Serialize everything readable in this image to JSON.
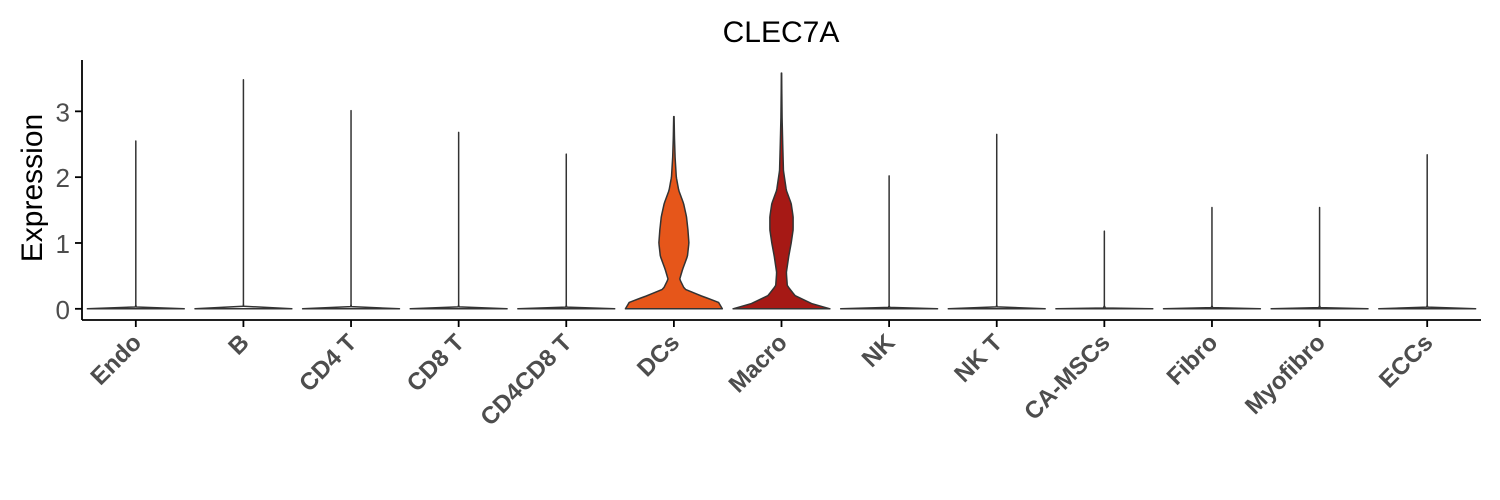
{
  "chart_data": {
    "type": "violin",
    "title": "CLEC7A",
    "xlabel": "",
    "ylabel": "Expression",
    "ylim": [
      -0.17,
      3.78
    ],
    "yticks": [
      0,
      1,
      2,
      3
    ],
    "grid": false,
    "legend": "none",
    "categories": [
      "Endo",
      "B",
      "CD4 T",
      "CD8 T",
      "CD4CD8 T",
      "DCs",
      "Macro",
      "NK",
      "NK T",
      "CA-MSCs",
      "Fibro",
      "Myofibro",
      "ECCs"
    ],
    "max_values": [
      2.55,
      3.48,
      3.01,
      2.68,
      2.35,
      2.92,
      3.58,
      2.02,
      2.65,
      1.18,
      1.54,
      1.54,
      2.34
    ],
    "fill_colors": [
      "#ffffff",
      "#ffffff",
      "#ffffff",
      "#ffffff",
      "#ffffff",
      "#e6561a",
      "#a61915",
      "#ffffff",
      "#ffffff",
      "#ffffff",
      "#ffffff",
      "#ffffff",
      "#ffffff"
    ],
    "density_profiles": {
      "DCs": [
        [
          0,
          1.0
        ],
        [
          0.1,
          0.92
        ],
        [
          0.2,
          0.55
        ],
        [
          0.3,
          0.22
        ],
        [
          0.45,
          0.12
        ],
        [
          0.6,
          0.18
        ],
        [
          0.8,
          0.28
        ],
        [
          1.0,
          0.31
        ],
        [
          1.2,
          0.29
        ],
        [
          1.4,
          0.26
        ],
        [
          1.6,
          0.2
        ],
        [
          1.8,
          0.1
        ],
        [
          2.0,
          0.05
        ],
        [
          2.3,
          0.025
        ],
        [
          2.6,
          0.012
        ],
        [
          2.92,
          0.004
        ]
      ],
      "Macro": [
        [
          0,
          1.0
        ],
        [
          0.08,
          0.62
        ],
        [
          0.2,
          0.28
        ],
        [
          0.35,
          0.12
        ],
        [
          0.55,
          0.1
        ],
        [
          0.8,
          0.15
        ],
        [
          1.0,
          0.2
        ],
        [
          1.2,
          0.24
        ],
        [
          1.4,
          0.24
        ],
        [
          1.6,
          0.2
        ],
        [
          1.8,
          0.1
        ],
        [
          2.1,
          0.04
        ],
        [
          2.5,
          0.025
        ],
        [
          2.9,
          0.012
        ],
        [
          3.3,
          0.006
        ],
        [
          3.58,
          0.003
        ]
      ]
    }
  }
}
